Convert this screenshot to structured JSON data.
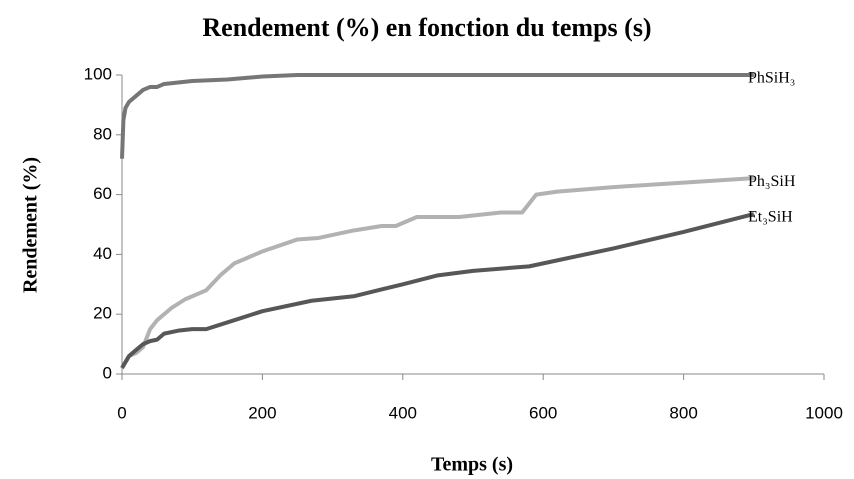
{
  "chart_data": {
    "type": "line",
    "title": "Rendement (%) en fonction du temps (s)",
    "x_label": "Temps (s)",
    "y_label": "Rendement (%)",
    "xlim": [
      0,
      1000
    ],
    "xticks": [
      0,
      200,
      400,
      600,
      800,
      1000
    ],
    "ylim": [
      0,
      100
    ],
    "yticks": [
      0,
      20,
      40,
      60,
      80,
      100
    ],
    "grid": false,
    "series": [
      {
        "name": "PhSiH₃",
        "color": "#767676",
        "x": [
          0,
          2,
          5,
          10,
          20,
          30,
          40,
          50,
          60,
          80,
          100,
          150,
          200,
          250,
          300,
          900
        ],
        "values": [
          72,
          85,
          89,
          91,
          93,
          95,
          96,
          96,
          97,
          97.5,
          98,
          98.5,
          99.5,
          100,
          100,
          100
        ]
      },
      {
        "name": "Ph₃SiH",
        "color": "#b2b2b2",
        "x": [
          0,
          10,
          20,
          30,
          40,
          50,
          70,
          90,
          120,
          140,
          160,
          200,
          250,
          280,
          330,
          370,
          390,
          420,
          450,
          480,
          540,
          570,
          590,
          620,
          700,
          800,
          900
        ],
        "values": [
          2,
          6,
          7,
          9,
          15,
          18,
          22,
          25,
          28,
          33,
          37,
          41,
          45,
          45.5,
          48,
          49.5,
          49.5,
          52.5,
          52.5,
          52.5,
          54,
          54,
          60,
          61,
          62.5,
          64,
          65.5
        ]
      },
      {
        "name": "Et₃SiH",
        "color": "#575757",
        "x": [
          0,
          10,
          20,
          30,
          40,
          50,
          60,
          80,
          100,
          120,
          160,
          200,
          270,
          330,
          400,
          450,
          500,
          580,
          600,
          700,
          800,
          900
        ],
        "values": [
          2,
          6,
          8,
          10,
          11,
          11.5,
          13.5,
          14.5,
          15,
          15,
          18,
          21,
          24.5,
          26,
          30,
          33,
          34.5,
          36,
          37,
          42,
          47.5,
          53.5
        ]
      }
    ]
  }
}
